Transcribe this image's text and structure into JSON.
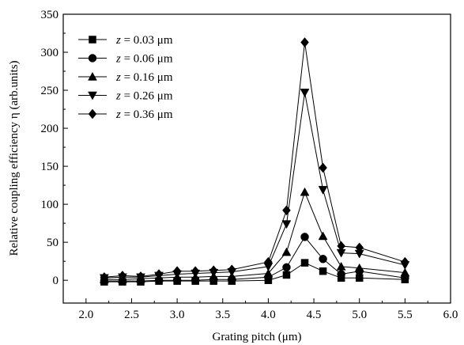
{
  "chart_data": {
    "type": "line",
    "title": "",
    "xlabel": "Grating pitch (μm)",
    "ylabel": "Relative coupling efficiency η (arb.units)",
    "xlim": [
      1.75,
      6.0
    ],
    "ylim": [
      -30,
      350
    ],
    "xticks": [
      2.0,
      2.5,
      3.0,
      3.5,
      4.0,
      4.5,
      5.0,
      5.5,
      6.0
    ],
    "xtick_labels": [
      "2.0",
      "2.5",
      "3.0",
      "3.5",
      "4.0",
      "4.5",
      "5.0",
      "5.5",
      "6.0"
    ],
    "yticks": [
      0,
      50,
      100,
      150,
      200,
      250,
      300,
      350
    ],
    "ytick_labels": [
      "0",
      "50",
      "100",
      "150",
      "200",
      "250",
      "300",
      "350"
    ],
    "grid": false,
    "legend_position": "top-left",
    "x": [
      2.2,
      2.4,
      2.6,
      2.8,
      3.0,
      3.2,
      3.4,
      3.6,
      4.0,
      4.2,
      4.4,
      4.6,
      4.8,
      5.0,
      5.5
    ],
    "series": [
      {
        "name": "z = 0.03 μm",
        "label_var": "z",
        "label_value": " = 0.03 μm",
        "marker": "square",
        "values": [
          -2,
          -2,
          -2,
          -1,
          -1,
          -1,
          -1,
          -1,
          0,
          7,
          23,
          12,
          3,
          3,
          1
        ]
      },
      {
        "name": "z = 0.06 μm",
        "label_var": "z",
        "label_value": " = 0.06 μm",
        "marker": "circle",
        "values": [
          -1,
          -1,
          -1,
          0,
          0,
          0,
          1,
          1,
          4,
          17,
          57,
          28,
          8,
          12,
          3
        ]
      },
      {
        "name": "z = 0.16 μm",
        "label_var": "z",
        "label_value": " = 0.16 μm",
        "marker": "triangle-up",
        "values": [
          1,
          1,
          2,
          3,
          4,
          4,
          5,
          5,
          9,
          37,
          116,
          58,
          18,
          16,
          10
        ]
      },
      {
        "name": "z = 0.26 μm",
        "label_var": "z",
        "label_value": " = 0.26 μm",
        "marker": "triangle-down",
        "values": [
          3,
          4,
          4,
          6,
          8,
          9,
          10,
          11,
          18,
          74,
          247,
          119,
          36,
          35,
          20
        ]
      },
      {
        "name": "z = 0.36 μm",
        "label_var": "z",
        "label_value": " = 0.36 μm",
        "marker": "diamond",
        "values": [
          4,
          6,
          5,
          8,
          12,
          12,
          13,
          14,
          24,
          92,
          313,
          148,
          45,
          43,
          24
        ]
      }
    ]
  }
}
